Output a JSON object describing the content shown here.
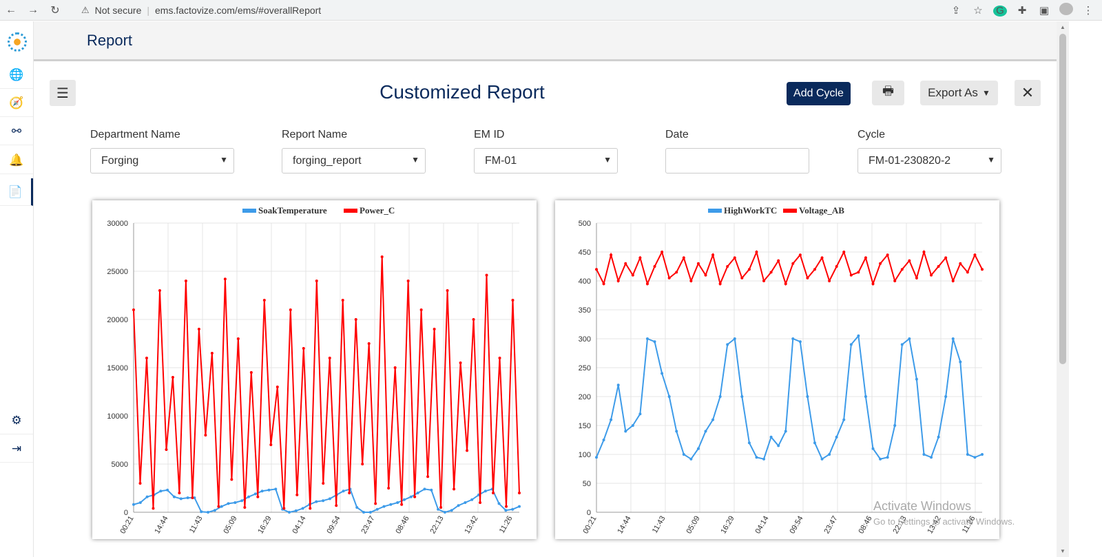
{
  "browser": {
    "security": "Not secure",
    "url": "ems.factovize.com/ems/#overallReport"
  },
  "sidebar": {
    "items": [
      {
        "icon": "globe-icon",
        "glyph": "🌐"
      },
      {
        "icon": "compass-icon",
        "glyph": "🧭"
      },
      {
        "icon": "sitemap-icon",
        "glyph": "⛓"
      },
      {
        "icon": "bell-icon",
        "glyph": "🔔"
      },
      {
        "icon": "file-icon",
        "glyph": "📄"
      },
      {
        "icon": "gear-icon",
        "glyph": "⚙"
      },
      {
        "icon": "logout-icon",
        "glyph": "⇥"
      }
    ]
  },
  "header": {
    "title": "Report"
  },
  "report": {
    "title": "Customized Report",
    "add_cycle": "Add Cycle",
    "export_as": "Export As"
  },
  "filters": {
    "department": {
      "label": "Department Name",
      "value": "Forging"
    },
    "report": {
      "label": "Report Name",
      "value": "forging_report"
    },
    "em_id": {
      "label": "EM ID",
      "value": "FM-01"
    },
    "date": {
      "label": "Date",
      "value": ""
    },
    "cycle": {
      "label": "Cycle",
      "value": "FM-01-230820-2"
    }
  },
  "watermark": {
    "line1": "Activate Windows",
    "line2": "Go to Settings to activate Windows."
  },
  "colors": {
    "navy": "#0a2a5c",
    "blue_series": "#3d9be9",
    "red_series": "#ff0000"
  },
  "chart_data": [
    {
      "type": "line",
      "legend": [
        "SoakTemperature",
        "Power_C"
      ],
      "legend_position": "top-center",
      "ylim": [
        0,
        30000
      ],
      "yticks": [
        0,
        5000,
        10000,
        15000,
        20000,
        25000,
        30000
      ],
      "xticks": [
        "00:21",
        "14:44",
        "11:43",
        "05:09",
        "16:29",
        "04:14",
        "09:54",
        "23:47",
        "08:46",
        "22:13",
        "13:42",
        "11:26"
      ],
      "grid": true,
      "series": [
        {
          "name": "SoakTemperature",
          "color": "#3d9be9",
          "values": [
            800,
            1000,
            1600,
            1800,
            2200,
            2300,
            1600,
            1400,
            1500,
            1500,
            50,
            0,
            200,
            600,
            900,
            1000,
            1200,
            1600,
            1900,
            2200,
            2300,
            2400,
            300,
            0,
            150,
            400,
            800,
            1100,
            1200,
            1400,
            1800,
            2200,
            2400,
            500,
            0,
            0,
            300,
            600,
            800,
            1000,
            1300,
            1600,
            2000,
            2400,
            2300,
            300,
            0,
            200,
            700,
            1000,
            1300,
            1800,
            2200,
            2400,
            900,
            200,
            300,
            600
          ]
        },
        {
          "name": "Power_C",
          "color": "#ff0000",
          "values": [
            21000,
            3000,
            16000,
            400,
            23000,
            6500,
            14000,
            2000,
            24000,
            1500,
            19000,
            8000,
            16500,
            600,
            24200,
            3400,
            18000,
            500,
            14500,
            1600,
            22000,
            7000,
            13000,
            400,
            21000,
            1800,
            17000,
            400,
            24000,
            3000,
            16000,
            700,
            22000,
            2000,
            20000,
            5000,
            17500,
            900,
            26500,
            2500,
            15000,
            800,
            24000,
            1600,
            21000,
            3700,
            19000,
            500,
            23000,
            2400,
            15500,
            6400,
            20000,
            1000,
            24600,
            2000,
            16000,
            600,
            22000,
            2000
          ]
        }
      ]
    },
    {
      "type": "line",
      "legend": [
        "HighWorkTC",
        "Voltage_AB"
      ],
      "legend_position": "top-center",
      "ylim": [
        0,
        500
      ],
      "yticks": [
        0,
        50,
        100,
        150,
        200,
        250,
        300,
        350,
        400,
        450,
        500
      ],
      "xticks": [
        "00:21",
        "14:44",
        "11:43",
        "05:09",
        "16:29",
        "04:14",
        "09:54",
        "23:47",
        "08:46",
        "22:13",
        "13:42",
        "11:26"
      ],
      "grid": true,
      "series": [
        {
          "name": "HighWorkTC",
          "color": "#3d9be9",
          "values": [
            95,
            125,
            160,
            220,
            140,
            150,
            170,
            300,
            295,
            240,
            200,
            140,
            100,
            92,
            110,
            140,
            160,
            200,
            290,
            300,
            200,
            120,
            95,
            92,
            130,
            115,
            140,
            300,
            295,
            200,
            120,
            92,
            100,
            130,
            160,
            290,
            305,
            200,
            110,
            92,
            95,
            150,
            290,
            300,
            230,
            100,
            95,
            130,
            200,
            300,
            260,
            100,
            95,
            100
          ]
        },
        {
          "name": "Voltage_AB",
          "color": "#ff0000",
          "values": [
            420,
            395,
            445,
            400,
            430,
            410,
            440,
            395,
            425,
            450,
            405,
            415,
            440,
            400,
            430,
            410,
            445,
            395,
            425,
            440,
            405,
            420,
            450,
            400,
            415,
            435,
            395,
            430,
            445,
            405,
            420,
            440,
            400,
            425,
            450,
            410,
            415,
            440,
            395,
            430,
            445,
            400,
            420,
            435,
            405,
            450,
            410,
            425,
            440,
            400,
            430,
            415,
            445,
            420
          ]
        }
      ]
    }
  ]
}
